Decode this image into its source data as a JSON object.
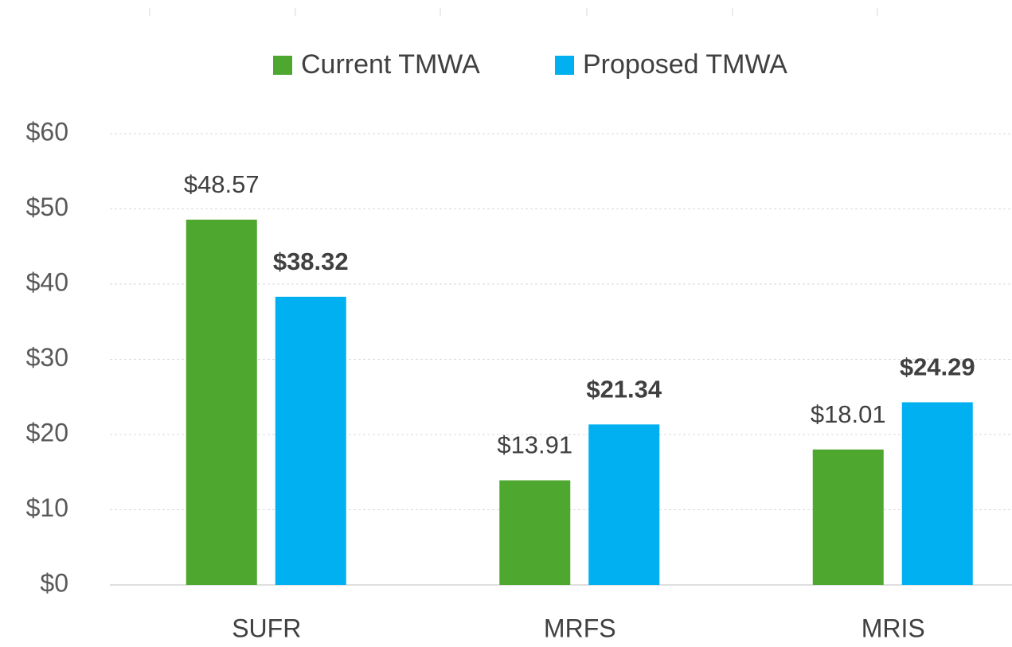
{
  "chart_data": {
    "type": "bar",
    "categories": [
      "SUFR",
      "MRFS",
      "MRIS"
    ],
    "series": [
      {
        "name": "Current TMWA",
        "color": "#4ea72e",
        "values": [
          48.57,
          13.91,
          18.01
        ],
        "value_labels": [
          "$48.57",
          "$13.91",
          "$18.01"
        ],
        "label_weight": "normal"
      },
      {
        "name": "Proposed TMWA",
        "color": "#00b0f0",
        "values": [
          38.32,
          21.34,
          24.29
        ],
        "value_labels": [
          "$38.32",
          "$21.34",
          "$24.29"
        ],
        "label_weight": "bold"
      }
    ],
    "ylim": [
      0,
      60
    ],
    "yticks": [
      {
        "value": 0,
        "label": "$0"
      },
      {
        "value": 10,
        "label": "$10"
      },
      {
        "value": 20,
        "label": "$20"
      },
      {
        "value": 30,
        "label": "$30"
      },
      {
        "value": 40,
        "label": "$40"
      },
      {
        "value": 50,
        "label": "$50"
      },
      {
        "value": 60,
        "label": "$60"
      }
    ],
    "grid": true,
    "legend": "top"
  }
}
